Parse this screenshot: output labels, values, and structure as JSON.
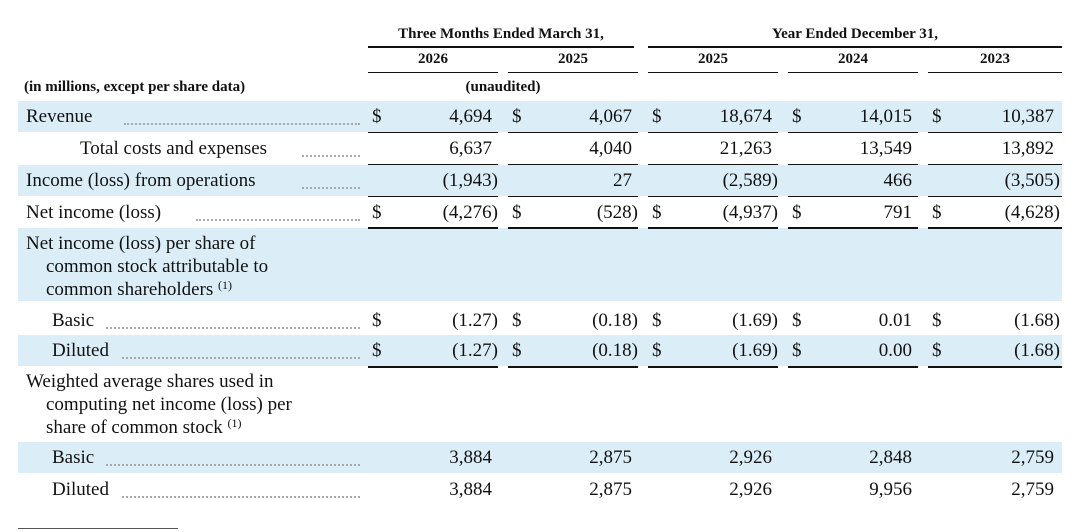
{
  "header": {
    "group_three_months": "Three Months Ended March 31,",
    "group_year": "Year Ended December 31,",
    "years": [
      "2026",
      "2025",
      "2025",
      "2024",
      "2023"
    ],
    "unit_note": "(in millions, except per share data)",
    "unaudited": "(unaudited)"
  },
  "rows": {
    "revenue": {
      "label": "Revenue",
      "values": [
        "4,694",
        "4,067",
        "18,674",
        "14,015",
        "10,387"
      ]
    },
    "costs": {
      "label": "Total costs and expenses",
      "values": [
        "6,637",
        "4,040",
        "21,263",
        "13,549",
        "13,892"
      ]
    },
    "operations": {
      "label": "Income (loss) from operations",
      "values": [
        "(1,943)",
        "27",
        "(2,589)",
        "466",
        "(3,505)"
      ]
    },
    "net_income": {
      "label": "Net income (loss)",
      "values": [
        "(4,276)",
        "(528)",
        "(4,937)",
        "791",
        "(4,628)"
      ]
    },
    "eps_heading": {
      "lines": [
        "Net income (loss) per share of",
        "common stock attributable to",
        "common shareholders"
      ],
      "footnote": "(1)"
    },
    "eps_basic": {
      "label": "Basic",
      "values": [
        "(1.27)",
        "(0.18)",
        "(1.69)",
        "0.01",
        "(1.68)"
      ]
    },
    "eps_diluted": {
      "label": "Diluted",
      "values": [
        "(1.27)",
        "(0.18)",
        "(1.69)",
        "0.00",
        "(1.68)"
      ]
    },
    "shares_heading": {
      "lines": [
        "Weighted average shares used in",
        "computing net income (loss) per",
        "share of common stock"
      ],
      "footnote": "(1)"
    },
    "shares_basic": {
      "label": "Basic",
      "values": [
        "3,884",
        "2,875",
        "2,926",
        "2,848",
        "2,759"
      ]
    },
    "shares_diluted": {
      "label": "Diluted",
      "values": [
        "3,884",
        "2,875",
        "2,926",
        "9,956",
        "2,759"
      ]
    }
  },
  "currency_symbol": "$"
}
